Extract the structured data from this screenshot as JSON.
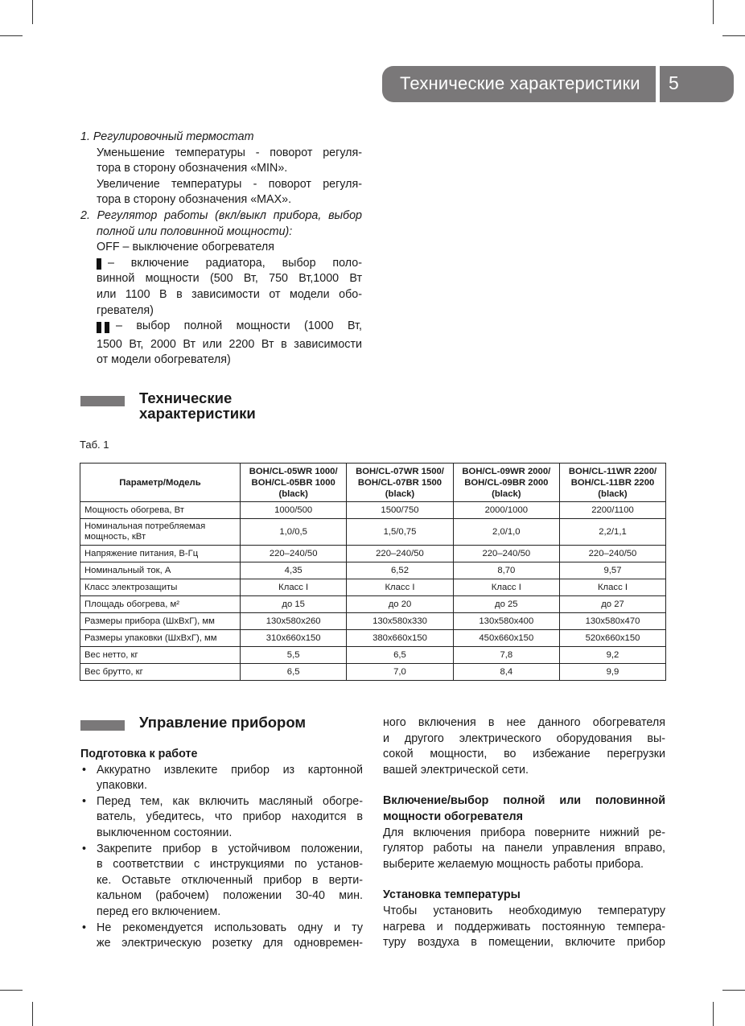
{
  "header": {
    "title": "Технические характеристики",
    "page_number": "5"
  },
  "controls": {
    "item1_title": "1. Регулировочный термостат",
    "item1_lines": [
      "Уменьшение температуры - поворот регуля-",
      "тора в сторону обозначения «MIN».",
      "Увеличение температуры - поворот регуля-",
      "тора в сторону обозначения «MAX»."
    ],
    "item2_title_lines": [
      "2. Регулятор работы (вкл/выкл прибора, выбор",
      "полной или половинной мощности):"
    ],
    "off_line": "OFF – выключение обогревателя",
    "half_lines": [
      "– включение радиатора, выбор поло-",
      "винной мощности (500 Вт, 750 Вт,1000 Вт",
      "или 1100 В в зависимости от модели обо-",
      "гревателя)"
    ],
    "full_lines": [
      "– выбор полной мощности (1000 Вт,",
      "1500 Вт, 2000 Вт или 2200 Вт в зависимости",
      "от модели обогревателя)"
    ]
  },
  "specs_section": {
    "title_lines": [
      "Технические",
      "характеристики"
    ],
    "table_label": "Таб. 1"
  },
  "table": {
    "headers": [
      "Параметр/Модель",
      "BOH/CL-05WR 1000/ BOH/CL-05BR 1000 (black)",
      "BOH/CL-07WR 1500/ BOH/CL-07BR 1500 (black)",
      "BOH/CL-09WR 2000/ BOH/CL-09BR 2000 (black)",
      "BOH/CL-11WR 2200/ BOH/CL-11BR 2200 (black)"
    ],
    "rows": [
      [
        "Мощность обогрева, Вт",
        "1000/500",
        "1500/750",
        "2000/1000",
        "2200/1100"
      ],
      [
        "Номинальная потребляемая мощность, кВт",
        "1,0/0,5",
        "1,5/0,75",
        "2,0/1,0",
        "2,2/1,1"
      ],
      [
        "Напряжение питания, В-Гц",
        "220–240/50",
        "220–240/50",
        "220–240/50",
        "220–240/50"
      ],
      [
        "Номинальный ток, А",
        "4,35",
        "6,52",
        "8,70",
        "9,57"
      ],
      [
        "Класс электрозащиты",
        "Класс I",
        "Класс I",
        "Класс I",
        "Класс I"
      ],
      [
        "Площадь обогрева, м²",
        "до 15",
        "до 20",
        "до 25",
        "до 27"
      ],
      [
        "Размеры прибора (ШxВxГ), мм",
        "130x580x260",
        "130x580x330",
        "130x580x400",
        "130x580x470"
      ],
      [
        "Размеры упаковки (ШxВxГ), мм",
        "310x660x150",
        "380x660x150",
        "450x660x150",
        "520x660x150"
      ],
      [
        "Вес нетто, кг",
        "5,5",
        "6,5",
        "7,8",
        "9,2"
      ],
      [
        "Вес брутто, кг",
        "6,5",
        "7,0",
        "8,4",
        "9,9"
      ]
    ]
  },
  "control_section": {
    "title": "Управление прибором",
    "prep_title": "Подготовка к работе",
    "bullets": [
      [
        "Аккуратно извлеките прибор из картонной",
        "упаковки."
      ],
      [
        "Перед тем, как включить масляный обогре-",
        "ватель, убедитесь, что прибор находится в",
        "выключенном состоянии."
      ],
      [
        "Закрепите прибор в устойчивом положении,",
        "в соответствии с инструкциями по установ-",
        "ке. Оставьте отключенный прибор в верти-",
        "кальном (рабочем) положении 30-40 мин.",
        "перед его включением."
      ],
      [
        "Не рекомендуется использовать одну и ту",
        "же электрическую розетку для одновремен-"
      ]
    ],
    "cont_lines": [
      "ного включения в нее данного обогревателя",
      "и другого электрического оборудования вы-",
      "сокой мощности, во избежание перегрузки",
      "вашей электрической сети."
    ],
    "power_title_lines": [
      "Включение/выбор полной или половинной",
      "мощности обогревателя"
    ],
    "power_lines": [
      "Для включения прибора поверните нижний ре-",
      "гулятор работы на панели управления вправо,",
      "выберите желаемую мощность работы прибора."
    ],
    "temp_title": "Установка температуры",
    "temp_lines": [
      "Чтобы установить необходимую температуру",
      "нагрева и поддерживать постоянную темпера-",
      "туру воздуха в помещении, включите прибор"
    ]
  }
}
